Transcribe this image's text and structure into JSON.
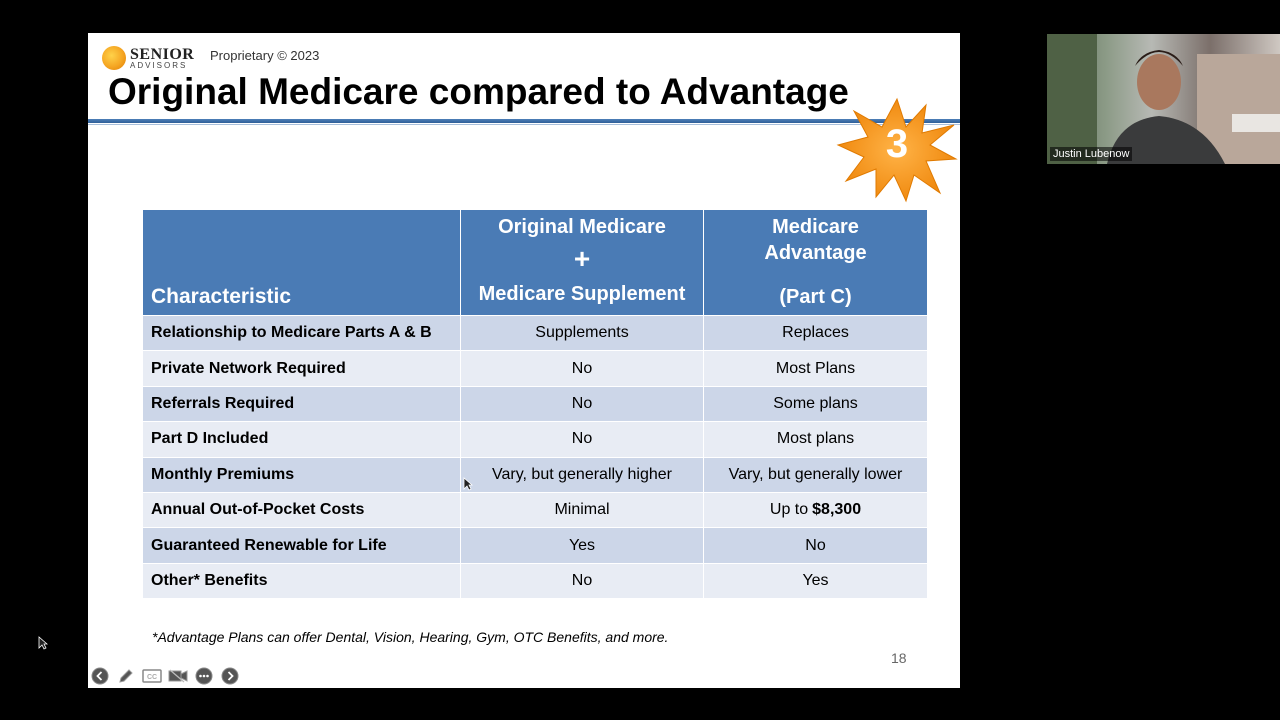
{
  "slide": {
    "logo": {
      "name": "SENIOR",
      "sub": "ADVISORS"
    },
    "proprietary": "Proprietary © 2023",
    "title": "Original Medicare compared to Advantage",
    "badge_number": "3",
    "table": {
      "headers": {
        "col1": "Characteristic",
        "col2_line1": "Original Medicare",
        "col2_line2": "+",
        "col2_line3": "Medicare Supplement",
        "col3_line1": "Medicare",
        "col3_line2": "Advantage",
        "col3_line3": "(Part C)"
      },
      "rows": [
        {
          "characteristic": "Relationship to Medicare Parts A & B",
          "original": "Supplements",
          "advantage": "Replaces"
        },
        {
          "characteristic": "Private Network Required",
          "original": "No",
          "advantage": "Most Plans"
        },
        {
          "characteristic": "Referrals Required",
          "original": "No",
          "advantage": "Some plans"
        },
        {
          "characteristic": "Part D Included",
          "original": "No",
          "advantage": "Most plans"
        },
        {
          "characteristic": "Monthly Premiums",
          "original": "Vary, but generally higher",
          "advantage": "Vary, but generally lower"
        },
        {
          "characteristic": "Annual Out-of-Pocket Costs",
          "original": "Minimal",
          "advantage_prefix": "Up to",
          "advantage_bold": "$8,300"
        },
        {
          "characteristic": "Guaranteed Renewable for Life",
          "original": "Yes",
          "advantage": "No"
        },
        {
          "characteristic": "Other* Benefits",
          "original": "No",
          "advantage": "Yes"
        }
      ]
    },
    "footnote": "*Advantage Plans can offer Dental, Vision, Hearing, Gym, OTC Benefits, and more.",
    "page_number": "18"
  },
  "controls": [
    "previous-slide-icon",
    "pen-icon",
    "closed-captions-icon",
    "video-off-icon",
    "more-options-icon",
    "next-slide-icon"
  ],
  "video": {
    "participant_name": "Justin Lubenow"
  },
  "colors": {
    "header_blue": "#4a7bb5",
    "row_odd": "#ccd6e8",
    "row_even": "#e8ecf4",
    "badge_orange": "#f5a623"
  }
}
